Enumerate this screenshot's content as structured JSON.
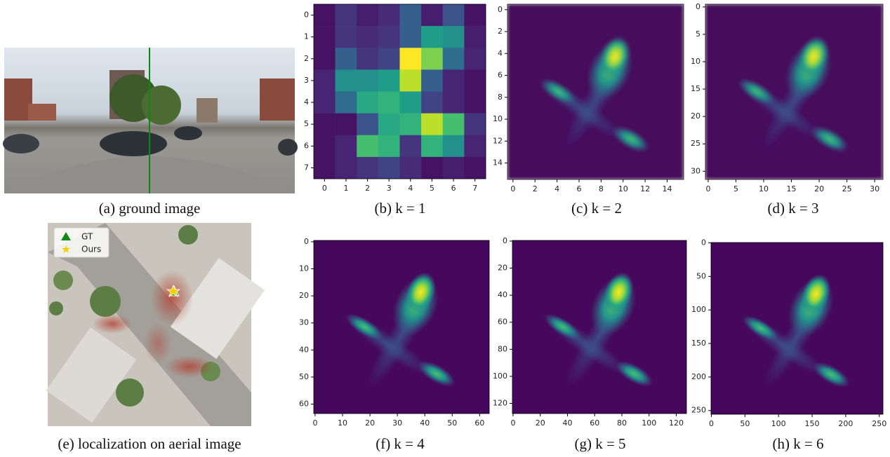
{
  "figure": {
    "ground_caption": "(a) ground image",
    "aerial_caption": "(e) localization on aerial image",
    "legend": [
      "GT",
      "Ours"
    ]
  },
  "chart_data": [
    {
      "type": "heatmap",
      "caption": "(b) k = 1",
      "xlim": [
        -0.5,
        7.5
      ],
      "ylim": [
        7.5,
        -0.5
      ],
      "xticks": [
        0,
        1,
        2,
        3,
        4,
        5,
        6,
        7
      ],
      "yticks": [
        0,
        1,
        2,
        3,
        4,
        5,
        6,
        7
      ],
      "values": [
        [
          0.05,
          0.15,
          0.08,
          0.12,
          0.3,
          0.08,
          0.25,
          0.05
        ],
        [
          0.05,
          0.15,
          0.12,
          0.15,
          0.3,
          0.55,
          0.5,
          0.08
        ],
        [
          0.05,
          0.3,
          0.15,
          0.2,
          1.0,
          0.8,
          0.35,
          0.1
        ],
        [
          0.1,
          0.5,
          0.5,
          0.55,
          0.9,
          0.3,
          0.1,
          0.05
        ],
        [
          0.1,
          0.35,
          0.6,
          0.65,
          0.55,
          0.2,
          0.1,
          0.05
        ],
        [
          0.05,
          0.05,
          0.25,
          0.6,
          0.65,
          0.9,
          0.7,
          0.15
        ],
        [
          0.05,
          0.1,
          0.7,
          0.65,
          0.15,
          0.65,
          0.5,
          0.1
        ],
        [
          0.05,
          0.1,
          0.15,
          0.2,
          0.12,
          0.05,
          0.08,
          0.05
        ]
      ]
    },
    {
      "type": "heatmap",
      "caption": "(c) k = 2",
      "xlim": [
        -0.5,
        15.5
      ],
      "ylim": [
        15.5,
        -0.5
      ],
      "xticks": [
        0,
        2,
        4,
        6,
        8,
        10,
        12,
        14
      ],
      "yticks": [
        0,
        2,
        4,
        6,
        8,
        10,
        12,
        14
      ]
    },
    {
      "type": "heatmap",
      "caption": "(d) k = 3",
      "xlim": [
        -0.5,
        31.5
      ],
      "ylim": [
        31.5,
        -0.5
      ],
      "xticks": [
        0,
        5,
        10,
        15,
        20,
        25,
        30
      ],
      "yticks": [
        0,
        5,
        10,
        15,
        20,
        25,
        30
      ]
    },
    {
      "type": "heatmap",
      "caption": "(f) k = 4",
      "xlim": [
        -0.5,
        63.5
      ],
      "ylim": [
        63.5,
        -0.5
      ],
      "xticks": [
        0,
        10,
        20,
        30,
        40,
        50,
        60
      ],
      "yticks": [
        0,
        10,
        20,
        30,
        40,
        50,
        60
      ]
    },
    {
      "type": "heatmap",
      "caption": "(g) k = 5",
      "xlim": [
        -0.5,
        127.5
      ],
      "ylim": [
        127.5,
        -0.5
      ],
      "xticks": [
        0,
        20,
        40,
        60,
        80,
        100,
        120
      ],
      "yticks": [
        0,
        20,
        40,
        60,
        80,
        100,
        120
      ]
    },
    {
      "type": "heatmap",
      "caption": "(h) k = 6",
      "xlim": [
        -0.5,
        255.5
      ],
      "ylim": [
        255.5,
        -0.5
      ],
      "xticks": [
        0,
        50,
        100,
        150,
        200,
        250
      ],
      "yticks": [
        0,
        50,
        100,
        150,
        200,
        250
      ]
    }
  ]
}
